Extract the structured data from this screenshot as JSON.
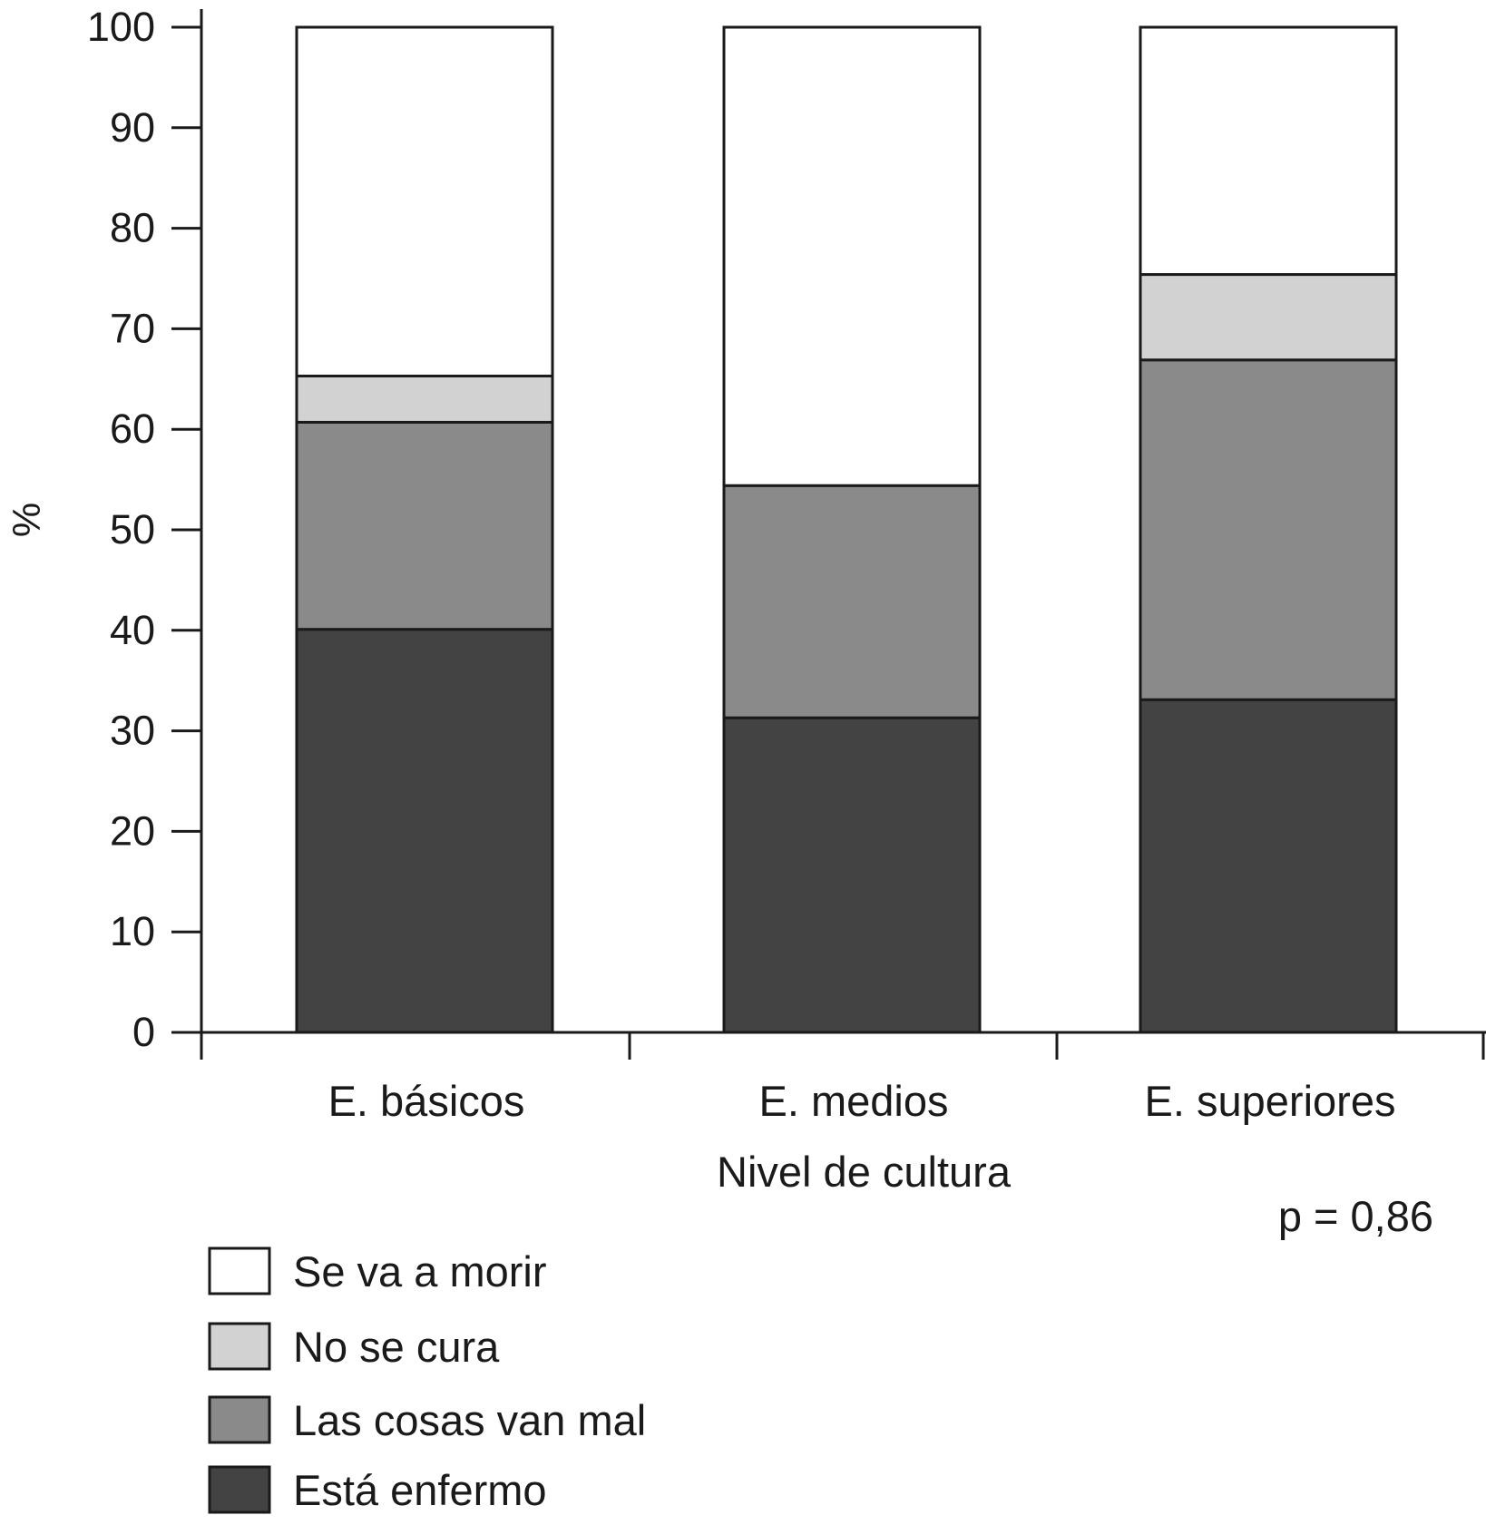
{
  "chart_data": {
    "type": "bar",
    "stacked": true,
    "title": "",
    "xlabel": "Nivel de cultura",
    "ylabel": "%",
    "ylim": [
      0,
      100
    ],
    "yticks": [
      0,
      10,
      20,
      30,
      40,
      50,
      60,
      70,
      80,
      90,
      100
    ],
    "categories": [
      "E. básicos",
      "E. medios",
      "E. superiores"
    ],
    "series": [
      {
        "name": "Está enfermo",
        "color": "#434343",
        "values": [
          40.1,
          31.3,
          33.1
        ]
      },
      {
        "name": "Las cosas van mal",
        "color": "#8a8a8a",
        "values": [
          20.6,
          23.1,
          33.8
        ]
      },
      {
        "name": "No se cura",
        "color": "#d2d2d2",
        "values": [
          4.6,
          0,
          8.5
        ]
      },
      {
        "name": "Se va a morir",
        "color": "#ffffff",
        "values": [
          34.7,
          45.6,
          24.6
        ]
      }
    ],
    "legend_order": [
      "Se va a morir",
      "No se cura",
      "Las cosas van mal",
      "Está enfermo"
    ],
    "legend_placement": "bottom-left",
    "annotation": "p = 0,86",
    "grid": false
  }
}
